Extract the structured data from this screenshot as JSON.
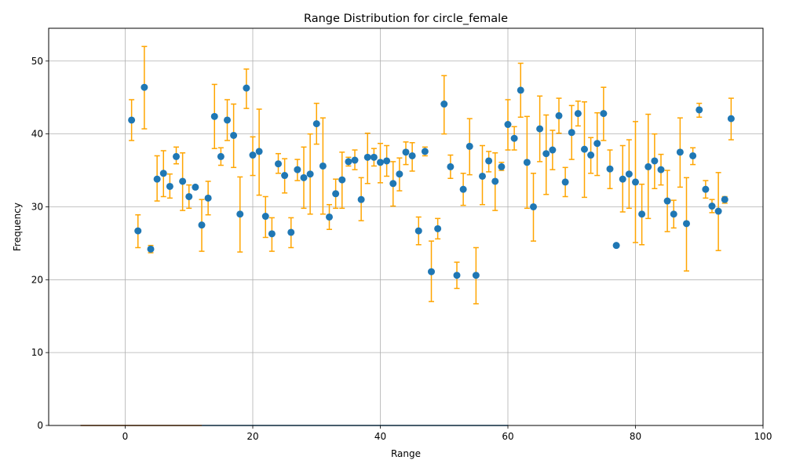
{
  "chart_data": {
    "type": "scatter",
    "title": "Range Distribution for circle_female",
    "xlabel": "Range",
    "ylabel": "Frequency",
    "xlim": [
      -12,
      100
    ],
    "ylim": [
      0,
      54.5
    ],
    "xticks": [
      0,
      20,
      40,
      60,
      80,
      100
    ],
    "yticks": [
      0,
      10,
      20,
      30,
      40,
      50
    ],
    "grid": true,
    "colors": {
      "points": "#1f77b4",
      "error_bars": "#ffa500",
      "grid": "#b0b0b0"
    },
    "x": [
      1,
      2,
      3,
      4,
      5,
      6,
      7,
      8,
      9,
      10,
      11,
      12,
      13,
      14,
      15,
      16,
      17,
      18,
      19,
      20,
      21,
      22,
      23,
      24,
      25,
      26,
      27,
      28,
      29,
      30,
      31,
      32,
      33,
      34,
      35,
      36,
      37,
      38,
      39,
      40,
      41,
      42,
      43,
      44,
      45,
      46,
      47,
      48,
      49,
      50,
      51,
      52,
      53,
      54,
      55,
      56,
      57,
      58,
      59,
      60,
      61,
      62,
      63,
      64,
      65,
      66,
      67,
      68,
      69,
      70,
      71,
      72,
      73,
      74,
      75,
      76,
      77,
      78,
      79,
      80,
      81,
      82,
      83,
      84,
      85,
      86,
      87,
      88,
      89,
      90,
      91,
      92,
      93,
      94,
      95
    ],
    "y": [
      41.9,
      26.7,
      46.4,
      24.2,
      33.8,
      34.6,
      32.8,
      36.9,
      33.5,
      31.4,
      32.7,
      27.5,
      31.2,
      42.4,
      36.9,
      41.9,
      39.8,
      29.0,
      46.3,
      37.1,
      37.6,
      28.7,
      26.3,
      35.9,
      34.3,
      26.5,
      35.1,
      34.0,
      34.5,
      41.4,
      35.6,
      28.6,
      31.8,
      33.7,
      36.2,
      36.4,
      31.0,
      36.8,
      36.8,
      36.1,
      36.3,
      33.2,
      34.5,
      37.5,
      37.0,
      26.7,
      37.6,
      21.1,
      27.0,
      44.1,
      35.5,
      20.6,
      32.4,
      38.3,
      20.6,
      34.2,
      36.3,
      33.5,
      35.5,
      41.3,
      39.4,
      46.0,
      36.1,
      30.0,
      40.7,
      37.3,
      37.8,
      42.5,
      33.4,
      40.2,
      42.8,
      37.9,
      37.1,
      38.7,
      42.8,
      35.2,
      24.7,
      33.8,
      34.5,
      33.4,
      29.0,
      35.5,
      36.3,
      35.1,
      30.8,
      29.0,
      37.5,
      27.7,
      37.0,
      43.3,
      32.4,
      30.1,
      29.4,
      31.0,
      42.1
    ],
    "y_lower": [
      39.1,
      24.4,
      40.7,
      23.7,
      30.8,
      31.4,
      31.2,
      35.9,
      29.5,
      29.8,
      32.7,
      23.9,
      28.9,
      38.0,
      35.7,
      39.1,
      35.4,
      23.8,
      43.5,
      34.3,
      31.6,
      25.8,
      23.9,
      34.6,
      31.9,
      24.4,
      33.6,
      29.8,
      29.0,
      38.6,
      29.0,
      26.9,
      29.8,
      29.8,
      35.6,
      35.1,
      28.1,
      33.2,
      35.6,
      33.3,
      34.2,
      30.1,
      32.2,
      35.8,
      34.9,
      24.8,
      37.0,
      17.0,
      25.6,
      40.0,
      33.9,
      18.8,
      30.2,
      34.4,
      16.7,
      30.3,
      34.8,
      29.5,
      35.0,
      37.8,
      37.8,
      42.3,
      29.8,
      25.3,
      36.2,
      31.7,
      35.1,
      40.1,
      31.4,
      36.5,
      41.1,
      31.3,
      34.6,
      34.3,
      39.1,
      32.5,
      24.7,
      29.3,
      29.8,
      25.1,
      24.8,
      28.4,
      32.5,
      33.0,
      26.6,
      27.1,
      32.7,
      21.2,
      35.8,
      42.3,
      31.2,
      29.2,
      24.0,
      30.5,
      39.2
    ],
    "y_upper": [
      44.7,
      28.9,
      52.0,
      24.7,
      37.0,
      37.7,
      34.5,
      38.2,
      37.4,
      33.0,
      32.7,
      31.0,
      33.5,
      46.8,
      38.1,
      44.7,
      44.1,
      34.1,
      48.9,
      39.6,
      43.4,
      31.4,
      28.5,
      37.3,
      36.6,
      28.5,
      36.5,
      38.2,
      40.0,
      44.2,
      42.2,
      30.3,
      33.8,
      37.5,
      36.8,
      37.8,
      34.0,
      40.1,
      38.0,
      38.7,
      38.4,
      36.2,
      36.7,
      38.9,
      38.8,
      28.6,
      38.2,
      25.3,
      28.4,
      48.0,
      37.1,
      22.4,
      34.6,
      42.1,
      24.4,
      38.4,
      37.6,
      37.4,
      36.1,
      44.7,
      41.0,
      49.7,
      42.4,
      34.6,
      45.2,
      42.6,
      40.5,
      44.9,
      35.4,
      43.9,
      44.5,
      44.4,
      39.5,
      42.9,
      46.4,
      37.8,
      24.7,
      38.4,
      39.2,
      41.7,
      33.1,
      42.7,
      40.0,
      37.2,
      35.0,
      30.9,
      42.2,
      34.0,
      38.1,
      44.2,
      33.6,
      31.0,
      34.7,
      31.4,
      44.9
    ],
    "baseline_curves": [
      {
        "x": [
          -7,
          60
        ],
        "y": [
          0,
          0
        ],
        "color": "#1f77b4"
      },
      {
        "x": [
          -7,
          12
        ],
        "y": [
          0,
          0
        ],
        "color": "#ff7f0e"
      }
    ]
  }
}
